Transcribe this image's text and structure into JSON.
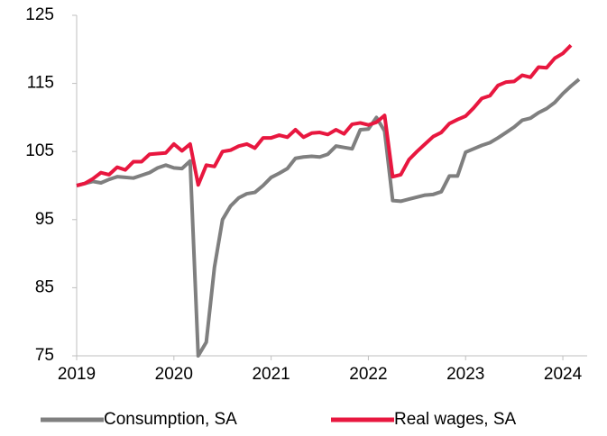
{
  "chart_data": {
    "type": "line",
    "x": [
      2019,
      2019.083,
      2019.167,
      2019.25,
      2019.333,
      2019.417,
      2019.5,
      2019.583,
      2019.667,
      2019.75,
      2019.833,
      2019.917,
      2020,
      2020.083,
      2020.167,
      2020.25,
      2020.333,
      2020.417,
      2020.5,
      2020.583,
      2020.667,
      2020.75,
      2020.833,
      2020.917,
      2021,
      2021.083,
      2021.167,
      2021.25,
      2021.333,
      2021.417,
      2021.5,
      2021.583,
      2021.667,
      2021.75,
      2021.833,
      2021.917,
      2022,
      2022.083,
      2022.167,
      2022.25,
      2022.333,
      2022.417,
      2022.5,
      2022.583,
      2022.667,
      2022.75,
      2022.833,
      2022.917,
      2023,
      2023.083,
      2023.167,
      2023.25,
      2023.333,
      2023.417,
      2023.5,
      2023.583,
      2023.667,
      2023.75,
      2023.833,
      2023.917,
      2024,
      2024.083,
      2024.167
    ],
    "series": [
      {
        "name": "Consumption, SA",
        "color": "#7f7f7f",
        "values": [
          100,
          100.3,
          100.6,
          100.4,
          100.9,
          101.3,
          101.2,
          101.1,
          101.5,
          101.9,
          102.6,
          103.0,
          102.6,
          102.5,
          103.6,
          75.0,
          77.0,
          88.0,
          95.0,
          97.0,
          98.2,
          98.8,
          99.0,
          100.0,
          101.2,
          101.8,
          102.5,
          104.0,
          104.2,
          104.3,
          104.2,
          104.6,
          105.8,
          105.6,
          105.4,
          108.2,
          108.3,
          110.0,
          108.0,
          97.8,
          97.7,
          98.0,
          98.3,
          98.6,
          98.7,
          99.1,
          101.4,
          101.4,
          104.9,
          105.4,
          105.9,
          106.3,
          107.0,
          107.8,
          108.6,
          109.6,
          109.9,
          110.7,
          111.3,
          112.2,
          113.5,
          114.6,
          115.6
        ]
      },
      {
        "name": "Real wages, SA",
        "color": "#e8173f",
        "values": [
          100,
          100.3,
          101.0,
          101.9,
          101.6,
          102.7,
          102.3,
          103.5,
          103.5,
          104.6,
          104.7,
          104.8,
          106.1,
          105.1,
          106.1,
          100.1,
          103.0,
          102.8,
          105.0,
          105.2,
          105.8,
          106.1,
          105.5,
          107.0,
          107.0,
          107.4,
          107.1,
          108.2,
          107.1,
          107.7,
          107.8,
          107.5,
          108.2,
          107.6,
          109.0,
          109.2,
          108.9,
          109.3,
          110.3,
          101.3,
          101.6,
          103.8,
          105.0,
          106.1,
          107.2,
          107.8,
          109.1,
          109.7,
          110.2,
          111.4,
          112.8,
          113.2,
          114.7,
          115.2,
          115.3,
          116.2,
          115.9,
          117.4,
          117.3,
          118.7,
          119.4,
          120.6,
          null
        ]
      }
    ],
    "xlim": [
      2019,
      2024.25
    ],
    "xticks": [
      2019,
      2020,
      2021,
      2022,
      2023,
      2024
    ],
    "ylim": [
      75,
      125
    ],
    "yticks": [
      75,
      85,
      95,
      105,
      115,
      125
    ],
    "grid": false,
    "legend": "bottom"
  }
}
